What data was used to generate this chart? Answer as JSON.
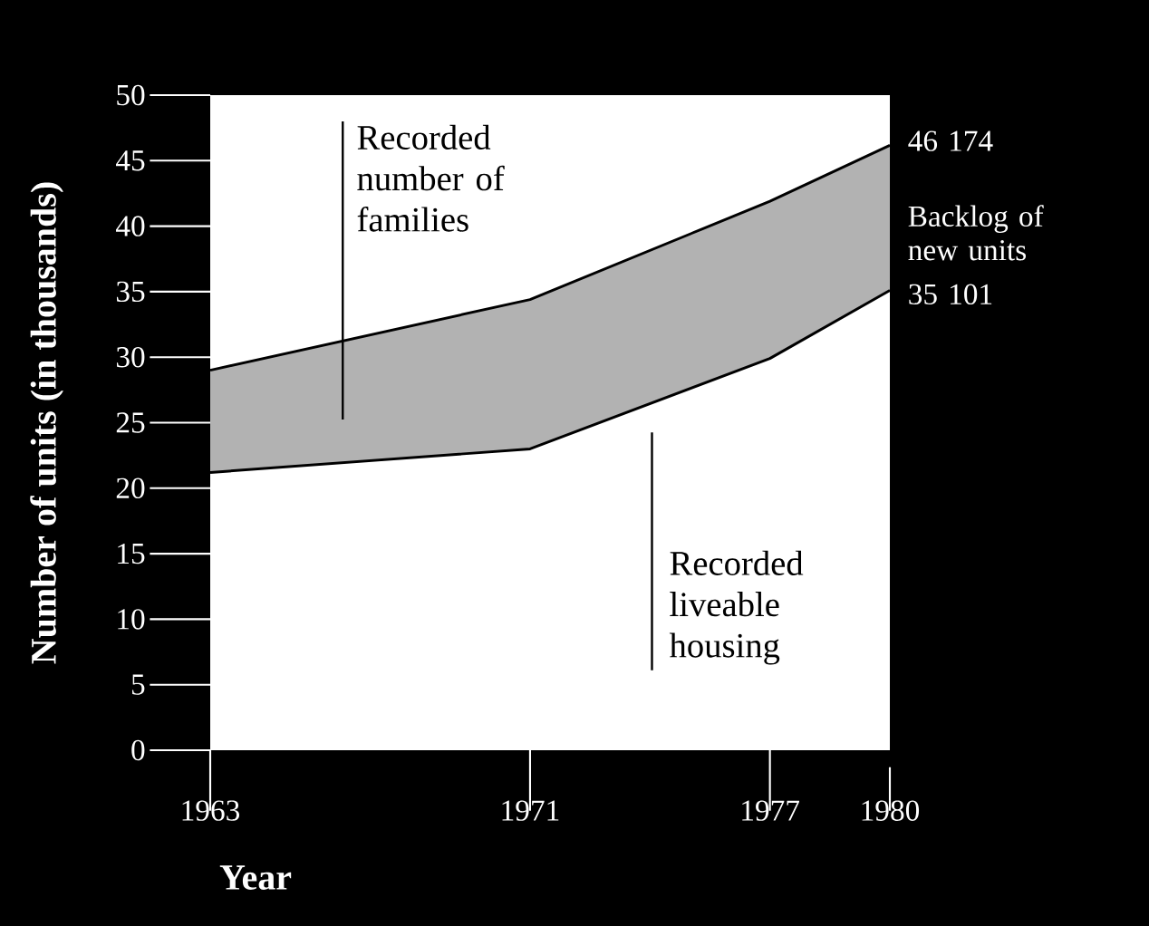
{
  "chart_data": {
    "type": "line",
    "ylabel": "Number of units (in thousands)",
    "xlabel": "Year",
    "x": [
      1963,
      1971,
      1977,
      1980
    ],
    "series": [
      {
        "name": "Recorded number of families",
        "color": "#000000",
        "values": [
          29.0,
          34.4,
          41.9,
          46.174
        ],
        "lower": [
          21.2,
          23.0,
          29.9,
          35.101
        ],
        "upper": [
          29.0,
          34.4,
          41.9,
          46.174
        ]
      },
      {
        "name": "Recorded liveable housing",
        "color": "#000000",
        "values": [
          21.2,
          23.0,
          29.9,
          35.101
        ]
      }
    ],
    "annotations": [
      "46 174",
      "Backlog of new units",
      "35 101"
    ],
    "xlim": [
      1963,
      1980
    ],
    "ylim": [
      0,
      50
    ],
    "xticks": [
      1963,
      1971,
      1977,
      1980
    ],
    "yticks": [
      0,
      5,
      10,
      15,
      20,
      25,
      30,
      35,
      40,
      45,
      50
    ],
    "grid": false,
    "legend": false
  }
}
